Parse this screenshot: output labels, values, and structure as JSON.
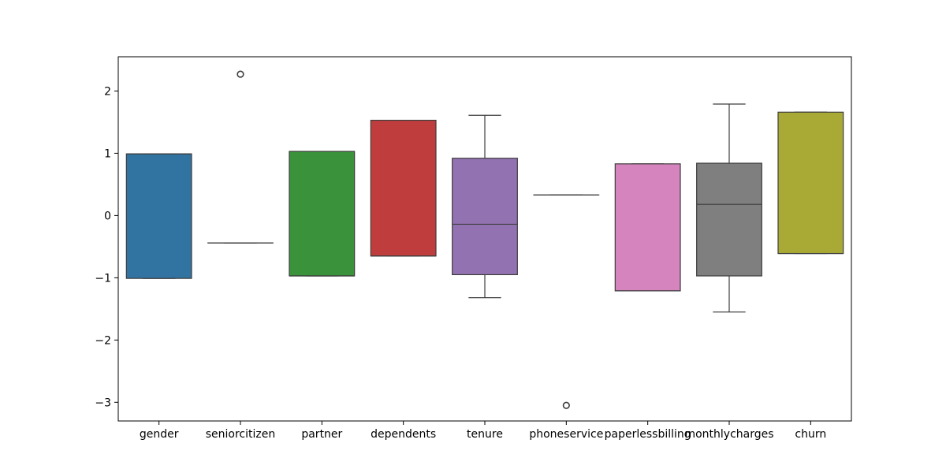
{
  "chart_data": {
    "type": "box",
    "categories": [
      "gender",
      "seniorcitizen",
      "partner",
      "dependents",
      "tenure",
      "phoneservice",
      "paperlessbilling",
      "monthlycharges",
      "churn"
    ],
    "ylim": [
      -3.3,
      2.55
    ],
    "yticks": [
      2,
      1,
      0,
      -1,
      -2,
      -3
    ],
    "ytick_labels": [
      "2",
      "1",
      "0",
      "−1",
      "−2",
      "−3"
    ],
    "boxes": [
      {
        "name": "gender",
        "color": "#3274a1",
        "q1": -1.01,
        "median": 0.99,
        "q3": 0.99,
        "whisker_low": -1.01,
        "whisker_high": 0.99,
        "outliers": []
      },
      {
        "name": "seniorcitizen",
        "color": "#e1812c",
        "q1": -0.44,
        "median": -0.44,
        "q3": -0.44,
        "whisker_low": -0.44,
        "whisker_high": -0.44,
        "outliers": [
          2.27
        ]
      },
      {
        "name": "partner",
        "color": "#3a923a",
        "q1": -0.97,
        "median": -0.97,
        "q3": 1.03,
        "whisker_low": -0.97,
        "whisker_high": 1.03,
        "outliers": []
      },
      {
        "name": "dependents",
        "color": "#c03d3e",
        "q1": -0.65,
        "median": -0.65,
        "q3": 1.53,
        "whisker_low": -0.65,
        "whisker_high": 1.53,
        "outliers": []
      },
      {
        "name": "tenure",
        "color": "#9372b2",
        "q1": -0.95,
        "median": -0.14,
        "q3": 0.92,
        "whisker_low": -1.32,
        "whisker_high": 1.61,
        "outliers": []
      },
      {
        "name": "phoneservice",
        "color": "#845b53",
        "q1": 0.33,
        "median": 0.33,
        "q3": 0.33,
        "whisker_low": 0.33,
        "whisker_high": 0.33,
        "outliers": [
          -3.05
        ]
      },
      {
        "name": "paperlessbilling",
        "color": "#d684bd",
        "q1": -1.21,
        "median": -1.21,
        "q3": 0.83,
        "whisker_low": -1.21,
        "whisker_high": 0.83,
        "outliers": []
      },
      {
        "name": "monthlycharges",
        "color": "#7f7f7f",
        "q1": -0.97,
        "median": 0.18,
        "q3": 0.84,
        "whisker_low": -1.55,
        "whisker_high": 1.79,
        "outliers": []
      },
      {
        "name": "churn",
        "color": "#a9aa35",
        "q1": -0.61,
        "median": -0.61,
        "q3": 1.66,
        "whisker_low": -0.61,
        "whisker_high": 1.66,
        "outliers": []
      }
    ],
    "grid": false,
    "title": "",
    "xlabel": "",
    "ylabel": ""
  }
}
